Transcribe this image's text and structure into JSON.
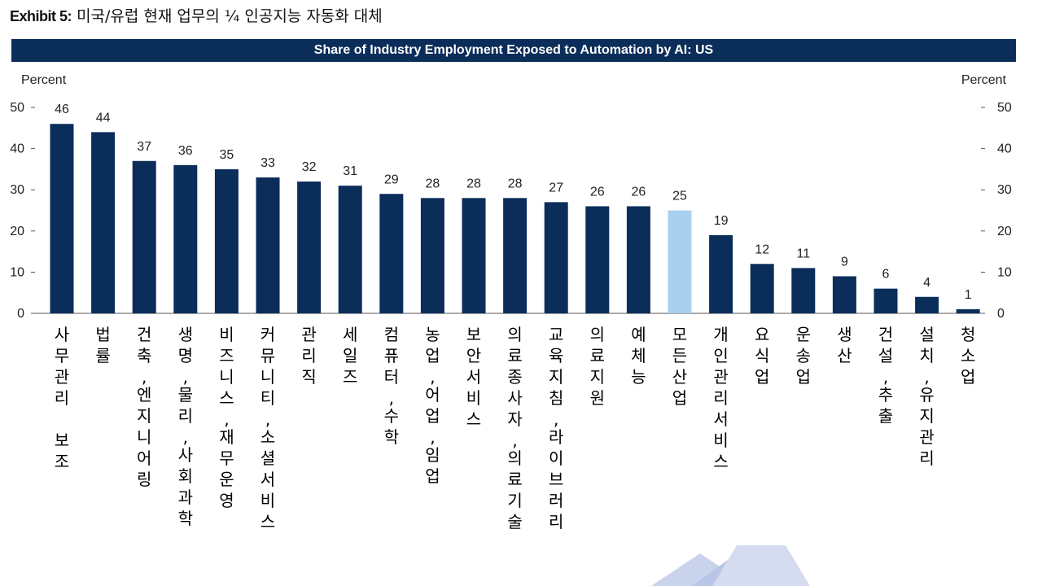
{
  "header": {
    "exhibit_label": "Exhibit 5:",
    "exhibit_title": "미국/유럽 현재 업무의 ¼ 인공지능 자동화 대체"
  },
  "chart_data": {
    "type": "bar",
    "title": "Share of Industry Employment Exposed to Automation by AI: US",
    "ylabel_left": "Percent",
    "ylabel_right": "Percent",
    "ylim": [
      0,
      50
    ],
    "yticks": [
      0,
      10,
      20,
      30,
      40,
      50
    ],
    "grid": false,
    "categories": [
      "사무관리 보조",
      "법률",
      "건축,엔지니어링",
      "생명,물리,사회과학",
      "비즈니스,재무운영",
      "커뮤니티,소셜서비스",
      "관리직",
      "세일즈",
      "컴퓨터,수학",
      "농업,어업,임업",
      "보안서비스",
      "의료종사자,의료기술",
      "교육지침,라이브러리",
      "의료지원",
      "예체능",
      "모든산업",
      "개인관리서비스",
      "요식업",
      "운송업",
      "생산",
      "건설,추출",
      "설치,유지관리",
      "청소업"
    ],
    "values": [
      46,
      44,
      37,
      36,
      35,
      33,
      32,
      31,
      29,
      28,
      28,
      28,
      27,
      26,
      26,
      25,
      19,
      12,
      11,
      9,
      6,
      4,
      1
    ],
    "highlight_index": 15,
    "colors": {
      "bar": "#0b2d5a",
      "highlight": "#a9d0ee",
      "band": "#0b2d5a"
    }
  }
}
